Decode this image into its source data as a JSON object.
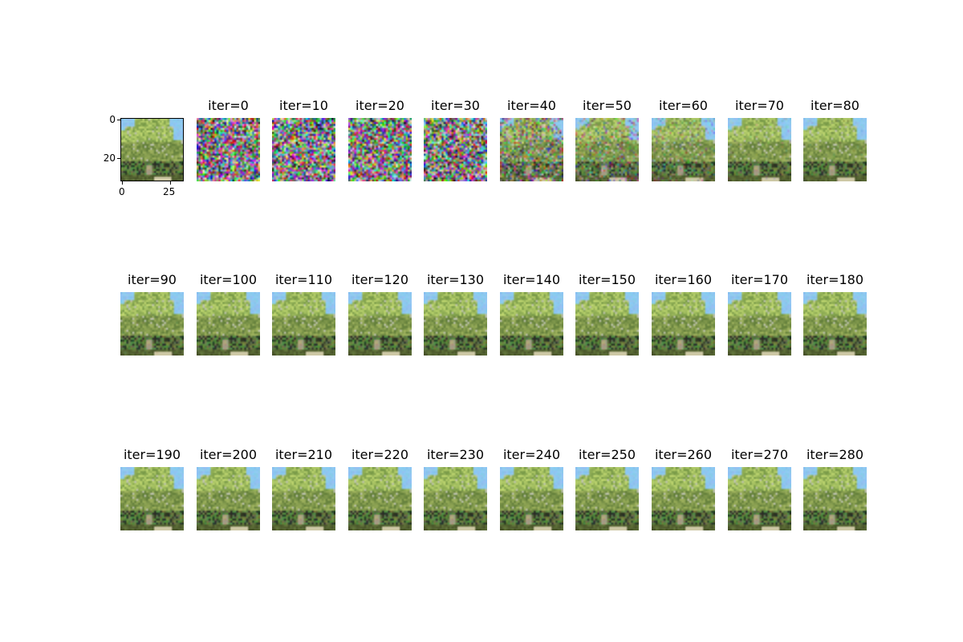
{
  "reference": {
    "y_ticks": [
      "0",
      "20"
    ],
    "x_ticks": [
      "0",
      "25"
    ]
  },
  "panels": [
    {
      "title": "iter=0",
      "noise": 1.0
    },
    {
      "title": "iter=10",
      "noise": 1.0
    },
    {
      "title": "iter=20",
      "noise": 1.0
    },
    {
      "title": "iter=30",
      "noise": 0.95
    },
    {
      "title": "iter=40",
      "noise": 0.55
    },
    {
      "title": "iter=50",
      "noise": 0.42
    },
    {
      "title": "iter=60",
      "noise": 0.28
    },
    {
      "title": "iter=70",
      "noise": 0.14
    },
    {
      "title": "iter=80",
      "noise": 0.1
    },
    {
      "title": "iter=90",
      "noise": 0.07
    },
    {
      "title": "iter=100",
      "noise": 0.05
    },
    {
      "title": "iter=110",
      "noise": 0.03
    },
    {
      "title": "iter=120",
      "noise": 0.02
    },
    {
      "title": "iter=130",
      "noise": 0.01
    },
    {
      "title": "iter=140",
      "noise": 0.01
    },
    {
      "title": "iter=150",
      "noise": 0.0
    },
    {
      "title": "iter=160",
      "noise": 0.0
    },
    {
      "title": "iter=170",
      "noise": 0.0
    },
    {
      "title": "iter=180",
      "noise": 0.0
    },
    {
      "title": "iter=190",
      "noise": 0.0
    },
    {
      "title": "iter=200",
      "noise": 0.0
    },
    {
      "title": "iter=210",
      "noise": 0.0
    },
    {
      "title": "iter=220",
      "noise": 0.0
    },
    {
      "title": "iter=230",
      "noise": 0.0
    },
    {
      "title": "iter=240",
      "noise": 0.0
    },
    {
      "title": "iter=250",
      "noise": 0.0
    },
    {
      "title": "iter=260",
      "noise": 0.0
    },
    {
      "title": "iter=270",
      "noise": 0.0
    },
    {
      "title": "iter=280",
      "noise": 0.0
    }
  ]
}
